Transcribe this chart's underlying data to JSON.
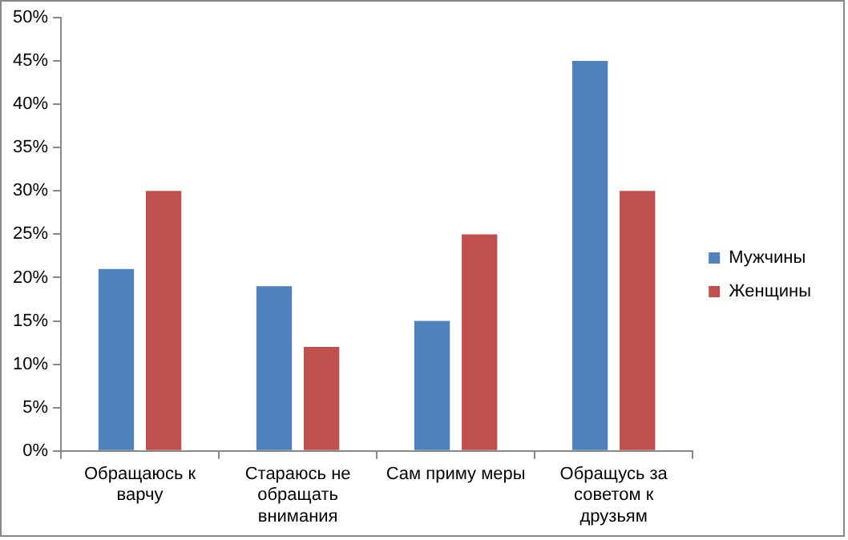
{
  "chart_data": {
    "type": "bar",
    "categories": [
      "Обращаюсь к варчу",
      "Стараюсь не обращать внимания",
      "Сам приму меры",
      "Обращусь за советом к друзьям"
    ],
    "series": [
      {
        "name": "Мужчины",
        "color": "#4f81bd",
        "values": [
          21,
          19,
          15,
          45
        ]
      },
      {
        "name": "Женщины",
        "color": "#c0504d",
        "values": [
          30,
          12,
          25,
          30
        ]
      }
    ],
    "ylim": [
      0,
      50
    ],
    "yticks": [
      {
        "value": 0,
        "label": "0%"
      },
      {
        "value": 5,
        "label": "5%"
      },
      {
        "value": 10,
        "label": "10%"
      },
      {
        "value": 15,
        "label": "15%"
      },
      {
        "value": 20,
        "label": "20%"
      },
      {
        "value": 25,
        "label": "25%"
      },
      {
        "value": 30,
        "label": "30%"
      },
      {
        "value": 35,
        "label": "35%"
      },
      {
        "value": 40,
        "label": "40%"
      },
      {
        "value": 45,
        "label": "45%"
      },
      {
        "value": 50,
        "label": "50%"
      }
    ],
    "grid": false,
    "legend": "right"
  }
}
